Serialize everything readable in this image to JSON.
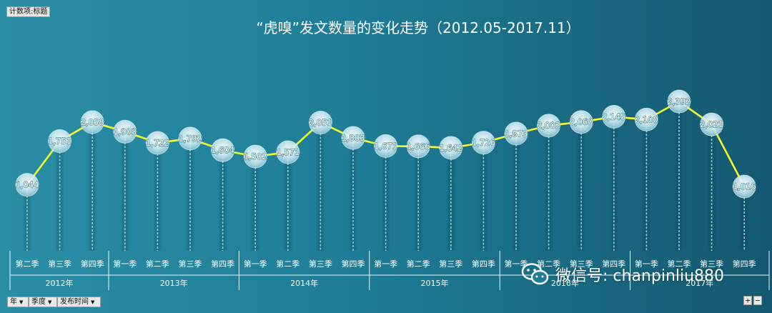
{
  "count_field": {
    "label": "计数项:标题"
  },
  "bottom_controls": {
    "year_label": "年",
    "season_label": "季度",
    "time_label": "发布时间",
    "dropdown_glyph": "▼",
    "zoom_in": "+",
    "zoom_out": "−"
  },
  "watermark": {
    "text": "微信号: chanpinliu880",
    "icon": "wechat-icon"
  },
  "colors": {
    "background_left": "#2a8ea5",
    "background_right": "#13586f",
    "line": "#f2ff2a",
    "marker": "#d9f1f7"
  },
  "chart_data": {
    "type": "line",
    "title": "“虎嗅”发文数量的变化走势（2012.05-2017.11）",
    "quarters": [
      "第二季",
      "第三季",
      "第四季",
      "第一季",
      "第二季",
      "第三季",
      "第四季",
      "第一季",
      "第二季",
      "第三季",
      "第四季",
      "第一季",
      "第二季",
      "第三季",
      "第四季",
      "第一季",
      "第二季",
      "第三季",
      "第四季",
      "第一季",
      "第二季",
      "第三季",
      "第四季"
    ],
    "year_groups": [
      {
        "label": "2012年",
        "count": 3
      },
      {
        "label": "2013年",
        "count": 4
      },
      {
        "label": "2014年",
        "count": 4
      },
      {
        "label": "2015年",
        "count": 4
      },
      {
        "label": "2016年",
        "count": 4
      },
      {
        "label": "2017年",
        "count": 4
      }
    ],
    "values": [
      1044,
      1751,
      2058,
      1903,
      1722,
      1792,
      1604,
      1502,
      1571,
      2051,
      1803,
      1671,
      1666,
      1642,
      1726,
      1873,
      2002,
      2060,
      2145,
      2100,
      2392,
      2021,
      1016
    ],
    "value_labels": [
      "1,044",
      "1,751",
      "2,058",
      "1,903",
      "1,722",
      "1,792",
      "1,604",
      "1,502",
      "1,571",
      "2,051",
      "1,803",
      "1,671",
      "1,666",
      "1,642",
      "1,726",
      "1,873",
      "2,002",
      "2,060",
      "2,145",
      "2,100",
      "2,392",
      "2,021",
      "1,016"
    ],
    "legend": "none"
  }
}
